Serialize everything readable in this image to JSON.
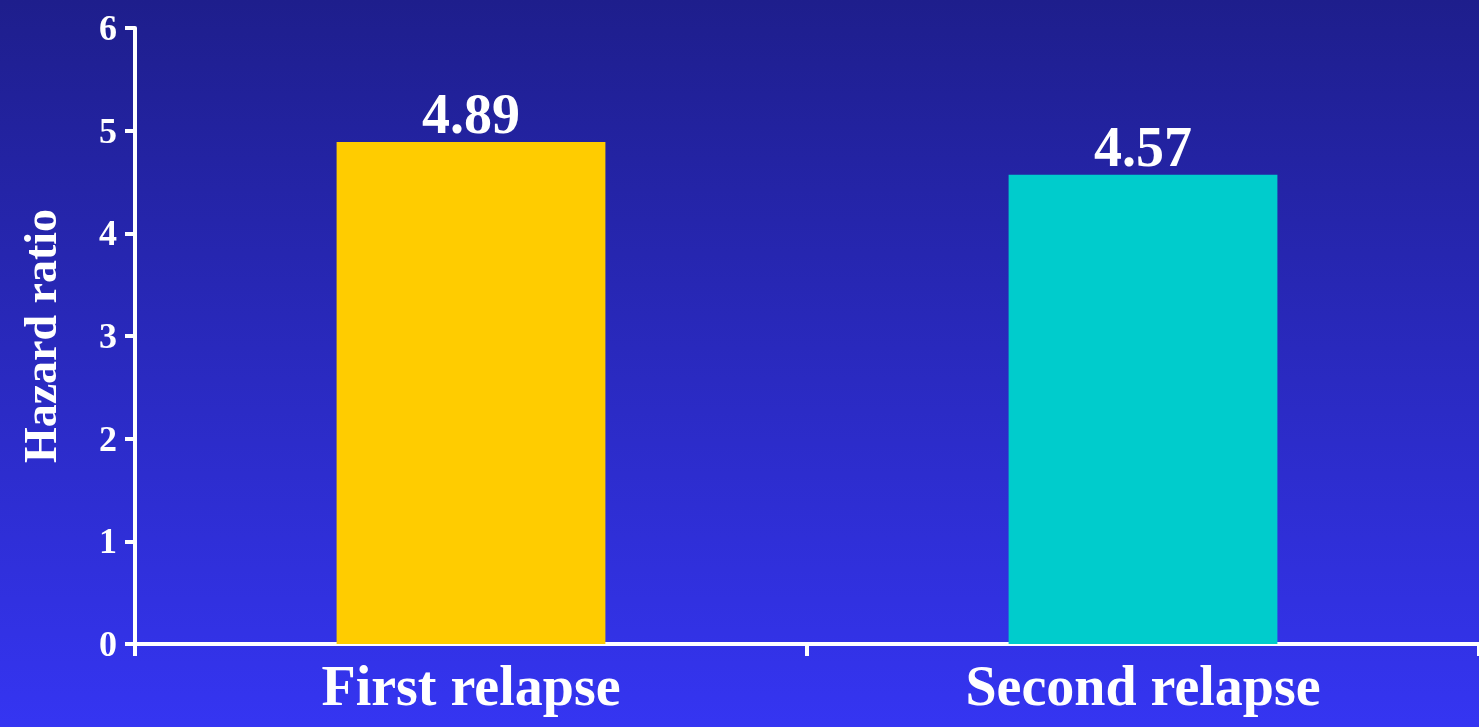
{
  "chart_data": {
    "type": "bar",
    "ylabel": "Hazard ratio",
    "categories": [
      "First relapse",
      "Second relapse"
    ],
    "values": [
      4.89,
      4.57
    ],
    "colors": [
      "#ffcc00",
      "#00cccc"
    ],
    "ylim": [
      0,
      6
    ],
    "yticks": [
      0,
      1,
      2,
      3,
      4,
      5,
      6
    ],
    "data_labels": true,
    "grid": false
  }
}
